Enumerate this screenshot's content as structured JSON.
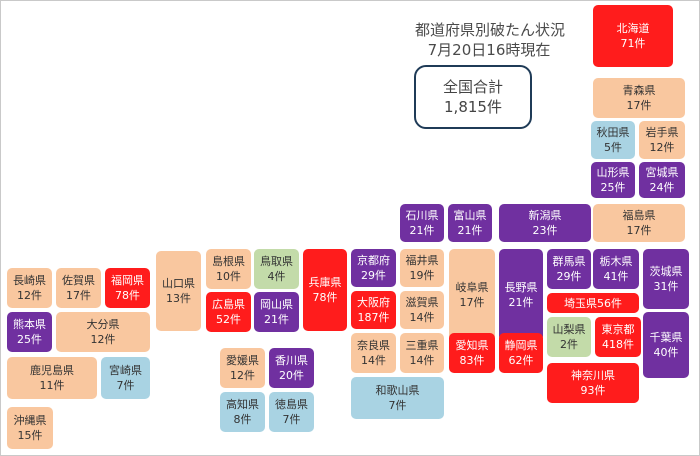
{
  "header": {
    "line1": "都道府県別破たん状況",
    "line2": "7月20日16時現在"
  },
  "total": {
    "label": "全国合計",
    "value": "1,815件"
  },
  "legend_colors": {
    "orange": "#f9c79f",
    "red": "#ff1c1c",
    "purple": "#7030a0",
    "blue": "#a9d3e3",
    "green": "#c3dba9"
  },
  "prefectures": {
    "hokkaido": {
      "name": "北海道",
      "count": "71件"
    },
    "aomori": {
      "name": "青森県",
      "count": "17件"
    },
    "akita": {
      "name": "秋田県",
      "count": "5件"
    },
    "iwate": {
      "name": "岩手県",
      "count": "12件"
    },
    "yamagata": {
      "name": "山形県",
      "count": "25件"
    },
    "miyagi": {
      "name": "宮城県",
      "count": "24件"
    },
    "fukushima": {
      "name": "福島県",
      "count": "17件"
    },
    "ishikawa": {
      "name": "石川県",
      "count": "21件"
    },
    "toyama": {
      "name": "富山県",
      "count": "21件"
    },
    "niigata": {
      "name": "新潟県",
      "count": "23件"
    },
    "gunma": {
      "name": "群馬県",
      "count": "29件"
    },
    "tochigi": {
      "name": "栃木県",
      "count": "41件"
    },
    "ibaraki": {
      "name": "茨城県",
      "count": "31件"
    },
    "saitama": {
      "name": "埼玉県",
      "count": "56件"
    },
    "nagano": {
      "name": "長野県",
      "count": "21件"
    },
    "yamanashi": {
      "name": "山梨県",
      "count": "2件"
    },
    "tokyo": {
      "name": "東京都",
      "count": "418件"
    },
    "chiba": {
      "name": "千葉県",
      "count": "40件"
    },
    "kanagawa": {
      "name": "神奈川県",
      "count": "93件"
    },
    "gifu": {
      "name": "岐阜県",
      "count": "17件"
    },
    "aichi": {
      "name": "愛知県",
      "count": "83件"
    },
    "shizuoka": {
      "name": "静岡県",
      "count": "62件"
    },
    "fukui": {
      "name": "福井県",
      "count": "19件"
    },
    "shiga": {
      "name": "滋賀県",
      "count": "14件"
    },
    "mie": {
      "name": "三重県",
      "count": "14件"
    },
    "kyoto": {
      "name": "京都府",
      "count": "29件"
    },
    "osaka": {
      "name": "大阪府",
      "count": "187件"
    },
    "nara": {
      "name": "奈良県",
      "count": "14件"
    },
    "wakayama": {
      "name": "和歌山県",
      "count": "7件"
    },
    "hyogo": {
      "name": "兵庫県",
      "count": "78件"
    },
    "tottori": {
      "name": "鳥取県",
      "count": "4件"
    },
    "shimane": {
      "name": "島根県",
      "count": "10件"
    },
    "okayama": {
      "name": "岡山県",
      "count": "21件"
    },
    "hiroshima": {
      "name": "広島県",
      "count": "52件"
    },
    "yamaguchi": {
      "name": "山口県",
      "count": "13件"
    },
    "ehime": {
      "name": "愛媛県",
      "count": "12件"
    },
    "kagawa": {
      "name": "香川県",
      "count": "20件"
    },
    "kochi": {
      "name": "高知県",
      "count": "8件"
    },
    "tokushima": {
      "name": "徳島県",
      "count": "7件"
    },
    "nagasaki": {
      "name": "長崎県",
      "count": "12件"
    },
    "saga": {
      "name": "佐賀県",
      "count": "17件"
    },
    "fukuoka": {
      "name": "福岡県",
      "count": "78件"
    },
    "kumamoto": {
      "name": "熊本県",
      "count": "25件"
    },
    "oita": {
      "name": "大分県",
      "count": "12件"
    },
    "kagoshima": {
      "name": "鹿児島県",
      "count": "11件"
    },
    "miyazaki": {
      "name": "宮崎県",
      "count": "7件"
    },
    "okinawa": {
      "name": "沖縄県",
      "count": "15件"
    }
  }
}
